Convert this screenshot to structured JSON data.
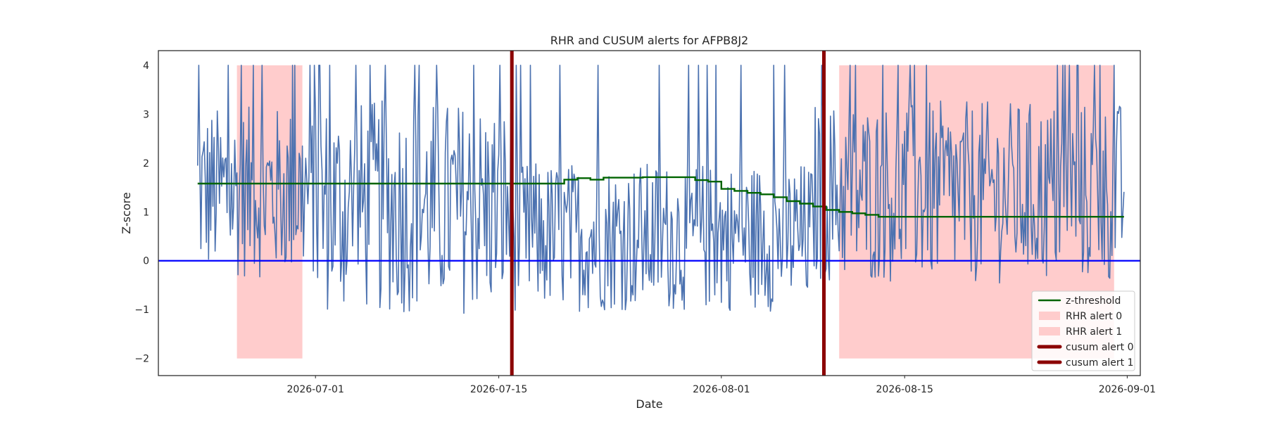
{
  "chart_data": {
    "type": "line",
    "title": "RHR and CUSUM alerts for AFPB8J2",
    "xlabel": "Date",
    "ylabel": "Z-score",
    "xlim": [
      "2026-06-19",
      "2026-09-02"
    ],
    "ylim": [
      -2.35,
      4.3
    ],
    "x_ticks": [
      "2026-07-01",
      "2026-07-15",
      "2026-08-01",
      "2026-08-15",
      "2026-09-01"
    ],
    "y_ticks": [
      -2,
      -1,
      0,
      1,
      2,
      3,
      4
    ],
    "grid": false,
    "legend_position": "lower-right",
    "colors": {
      "zscore": "#4c72b0",
      "z_threshold": "#006400",
      "baseline": "#0000ff",
      "rhr_alert": "#ffcccc",
      "cusum_alert": "#8b0000"
    },
    "series": [
      {
        "name": "z-score",
        "note_style": "noisy hourly line",
        "x_start": "2026-06-22",
        "x_end": "2026-08-31T18:00",
        "segments": [
          {
            "from": "2026-06-22",
            "to": "2026-07-01",
            "center": 1.4,
            "amplitude": 1.6
          },
          {
            "from": "2026-07-01",
            "to": "2026-07-16",
            "center": 1.1,
            "amplitude": 2.0
          },
          {
            "from": "2026-07-16",
            "to": "2026-08-08",
            "center": 0.5,
            "amplitude": 1.4
          },
          {
            "from": "2026-08-08",
            "to": "2026-08-31T18:00",
            "center": 1.4,
            "amplitude": 1.7
          }
        ]
      },
      {
        "name": "z-threshold",
        "x": [
          "2026-06-22",
          "2026-07-19",
          "2026-07-20",
          "2026-07-21",
          "2026-07-22",
          "2026-07-23",
          "2026-07-24",
          "2026-07-26",
          "2026-07-28",
          "2026-07-30",
          "2026-07-31",
          "2026-08-01",
          "2026-08-02",
          "2026-08-03",
          "2026-08-04",
          "2026-08-05",
          "2026-08-06",
          "2026-08-07",
          "2026-08-08",
          "2026-08-09",
          "2026-08-10",
          "2026-08-11",
          "2026-08-12",
          "2026-08-13",
          "2026-08-31T18:00"
        ],
        "y": [
          1.58,
          1.58,
          1.66,
          1.69,
          1.66,
          1.7,
          1.7,
          1.71,
          1.71,
          1.65,
          1.62,
          1.47,
          1.43,
          1.39,
          1.36,
          1.3,
          1.22,
          1.17,
          1.11,
          1.04,
          1.0,
          0.97,
          0.94,
          0.9,
          0.9
        ]
      },
      {
        "name": "baseline",
        "y": 0
      }
    ],
    "rhr_alerts": [
      {
        "name": "RHR alert 0",
        "start": "2026-06-25",
        "end": "2026-06-30",
        "y_low": -2,
        "y_high": 4
      },
      {
        "name": "RHR alert 1",
        "start": "2026-08-10",
        "end": "2026-08-31",
        "y_low": -2,
        "y_high": 4
      }
    ],
    "cusum_alerts": [
      {
        "name": "cusum alert 0",
        "x": "2026-07-16"
      },
      {
        "name": "cusum alert 1",
        "x": "2026-08-08T20:00"
      }
    ],
    "legend": [
      "z-threshold",
      "RHR alert 0",
      "RHR alert 1",
      "cusum alert 0",
      "cusum alert 1"
    ]
  }
}
